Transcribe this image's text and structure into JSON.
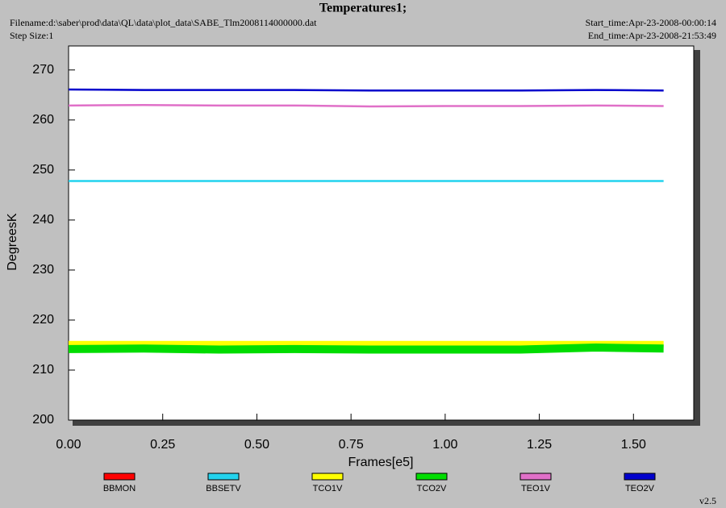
{
  "chart_data": {
    "type": "line",
    "title": "Temperatures1;",
    "filename": "Filename:d:\\saber\\prod\\data\\QL\\data\\plot_data\\SABE_Tlm2008114000000.dat",
    "step_size": "Step Size:1",
    "start_time": "Start_time:Apr-23-2008-00:00:14",
    "end_time": "End_time:Apr-23-2008-21:53:49",
    "version": "v2.5",
    "x_label": "Frames[e5]",
    "y_label": "DegreesK",
    "x": [
      0,
      0.2,
      0.4,
      0.6,
      0.8,
      1.0,
      1.2,
      1.4,
      1.58
    ],
    "series": [
      {
        "name": "BBMON",
        "color": "#ff0000",
        "values": [
          null,
          null,
          null,
          null,
          null,
          null,
          null,
          null,
          null
        ]
      },
      {
        "name": "BBSETV",
        "color": "#22d3ee",
        "values": [
          247.8,
          247.8,
          247.8,
          247.8,
          247.8,
          247.8,
          247.8,
          247.8,
          247.8
        ]
      },
      {
        "name": "TCO1V",
        "color": "#ffff00",
        "values": [
          215.2,
          215.2,
          215.2,
          215.2,
          215.2,
          215.2,
          215.2,
          215.2,
          215.2
        ]
      },
      {
        "name": "TCO2V",
        "color": "#00dd00",
        "values": [
          214.2,
          214.3,
          214.1,
          214.2,
          214.1,
          214.1,
          214.1,
          214.5,
          214.3
        ]
      },
      {
        "name": "TEO1V",
        "color": "#e070c8",
        "values": [
          262.9,
          263.0,
          262.9,
          262.9,
          262.7,
          262.8,
          262.8,
          262.9,
          262.8
        ]
      },
      {
        "name": "TEO2V",
        "color": "#0000cc",
        "values": [
          266.1,
          266.0,
          266.0,
          266.0,
          265.9,
          265.9,
          265.9,
          266.0,
          265.9
        ]
      }
    ],
    "xlim": [
      0,
      1.66
    ],
    "ylim": [
      200,
      274.8
    ],
    "xticks": [
      {
        "value": 0,
        "label": "0.00"
      },
      {
        "value": 0.25,
        "label": "0.25"
      },
      {
        "value": 0.5,
        "label": "0.50"
      },
      {
        "value": 0.75,
        "label": "0.75"
      },
      {
        "value": 1.0,
        "label": "1.00"
      },
      {
        "value": 1.25,
        "label": "1.25"
      },
      {
        "value": 1.5,
        "label": "1.50"
      }
    ],
    "yticks": [
      200,
      210,
      220,
      230,
      240,
      250,
      260,
      270
    ]
  }
}
